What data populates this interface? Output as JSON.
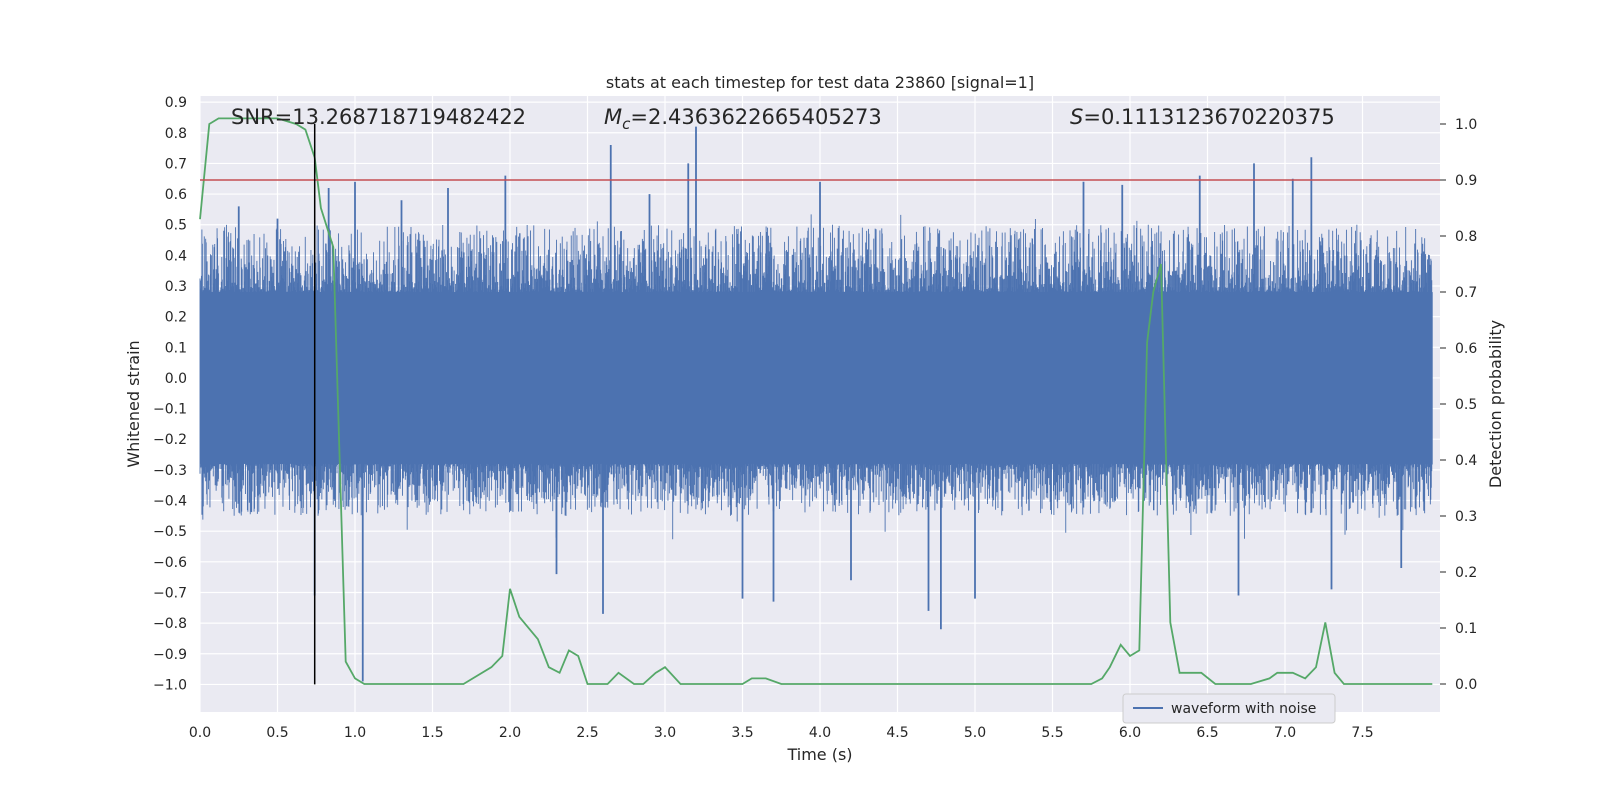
{
  "chart_data": {
    "type": "line",
    "title": "stats at each timestep for test data 23860 [signal=1]",
    "xlabel": "Time (s)",
    "ylabel": "Whitened strain",
    "y2label": "Detection probability",
    "xlim": [
      0.0,
      8.0
    ],
    "ylim": [
      -1.09,
      0.92
    ],
    "y2lim": [
      -0.05,
      1.05
    ],
    "xticks": [
      "0.0",
      "0.5",
      "1.0",
      "1.5",
      "2.0",
      "2.5",
      "3.0",
      "3.5",
      "4.0",
      "4.5",
      "5.0",
      "5.5",
      "6.0",
      "6.5",
      "7.0",
      "7.5"
    ],
    "yticks": [
      "0.9",
      "0.8",
      "0.7",
      "0.6",
      "0.5",
      "0.4",
      "0.3",
      "0.2",
      "0.1",
      "0.0",
      "−0.1",
      "−0.2",
      "−0.3",
      "−0.4",
      "−0.5",
      "−0.6",
      "−0.7",
      "−0.8",
      "−0.9",
      "−1.0"
    ],
    "y2ticks": [
      "0.0",
      "0.1",
      "0.2",
      "0.3",
      "0.4",
      "0.5",
      "0.6",
      "0.7",
      "0.8",
      "0.9",
      "1.0"
    ],
    "grid": true,
    "legend_position": "lower-right",
    "annotations": {
      "snr": "SNR=13.268718719482422",
      "mc_prefix": "M",
      "mc_sub": "c",
      "mc_value": "=2.4363622665405273",
      "s_prefix": "S",
      "s_value": "=0.1113123670220375"
    },
    "threshold": 0.9,
    "event_time": 0.74,
    "series": [
      {
        "name": "waveform with noise",
        "axis": "left",
        "color": "#4c72b0",
        "envelope": {
          "core_abs": 0.28,
          "typical_max": 0.5,
          "typical_min": -0.45
        },
        "spikes": [
          {
            "x": 0.25,
            "y": 0.56
          },
          {
            "x": 0.5,
            "y": 0.52
          },
          {
            "x": 0.74,
            "y": -0.71
          },
          {
            "x": 0.83,
            "y": 0.62
          },
          {
            "x": 1.0,
            "y": 0.64
          },
          {
            "x": 1.05,
            "y": -0.99
          },
          {
            "x": 1.3,
            "y": 0.58
          },
          {
            "x": 1.6,
            "y": 0.62
          },
          {
            "x": 1.97,
            "y": 0.66
          },
          {
            "x": 2.3,
            "y": -0.64
          },
          {
            "x": 2.6,
            "y": -0.77
          },
          {
            "x": 2.65,
            "y": 0.76
          },
          {
            "x": 2.9,
            "y": 0.6
          },
          {
            "x": 3.2,
            "y": 0.82
          },
          {
            "x": 3.15,
            "y": 0.7
          },
          {
            "x": 3.5,
            "y": -0.72
          },
          {
            "x": 3.7,
            "y": -0.73
          },
          {
            "x": 4.0,
            "y": 0.64
          },
          {
            "x": 4.2,
            "y": -0.66
          },
          {
            "x": 4.7,
            "y": -0.76
          },
          {
            "x": 4.78,
            "y": -0.82
          },
          {
            "x": 5.0,
            "y": -0.72
          },
          {
            "x": 5.7,
            "y": 0.64
          },
          {
            "x": 5.95,
            "y": 0.63
          },
          {
            "x": 6.45,
            "y": 0.66
          },
          {
            "x": 6.7,
            "y": -0.71
          },
          {
            "x": 6.8,
            "y": 0.7
          },
          {
            "x": 7.05,
            "y": 0.65
          },
          {
            "x": 7.17,
            "y": 0.72
          },
          {
            "x": 7.3,
            "y": -0.69
          },
          {
            "x": 7.75,
            "y": -0.62
          }
        ]
      },
      {
        "name": "detection probability",
        "axis": "right",
        "color": "#55a868",
        "x": [
          0.0,
          0.06,
          0.12,
          0.25,
          0.5,
          0.62,
          0.68,
          0.74,
          0.78,
          0.86,
          0.94,
          1.0,
          1.06,
          1.2,
          1.3,
          1.45,
          1.55,
          1.62,
          1.7,
          1.88,
          1.95,
          2.0,
          2.06,
          2.18,
          2.25,
          2.32,
          2.38,
          2.44,
          2.5,
          2.58,
          2.63,
          2.7,
          2.8,
          2.86,
          2.94,
          3.0,
          3.1,
          3.2,
          3.3,
          3.42,
          3.5,
          3.56,
          3.65,
          3.75,
          4.0,
          4.5,
          5.0,
          5.5,
          5.75,
          5.82,
          5.87,
          5.94,
          6.0,
          6.06,
          6.11,
          6.15,
          6.2,
          6.26,
          6.32,
          6.4,
          6.46,
          6.55,
          6.7,
          6.78,
          6.9,
          6.95,
          7.05,
          7.13,
          7.2,
          7.26,
          7.32,
          7.38,
          7.7,
          7.95
        ],
        "values": [
          0.83,
          1.0,
          1.01,
          1.01,
          1.01,
          1.0,
          0.99,
          0.94,
          0.85,
          0.78,
          0.04,
          0.01,
          0.0,
          0.0,
          0.0,
          0.0,
          0.0,
          0.0,
          0.0,
          0.03,
          0.05,
          0.17,
          0.12,
          0.08,
          0.03,
          0.02,
          0.06,
          0.05,
          0.0,
          0.0,
          0.0,
          0.02,
          0.0,
          0.0,
          0.02,
          0.03,
          0.0,
          0.0,
          0.0,
          0.0,
          0.0,
          0.01,
          0.01,
          0.0,
          0.0,
          0.0,
          0.0,
          0.0,
          0.0,
          0.01,
          0.03,
          0.07,
          0.05,
          0.06,
          0.61,
          0.7,
          0.75,
          0.11,
          0.02,
          0.02,
          0.02,
          0.0,
          0.0,
          0.0,
          0.01,
          0.02,
          0.02,
          0.01,
          0.03,
          0.11,
          0.02,
          0.0,
          0.0,
          0.0
        ]
      },
      {
        "name": "threshold",
        "axis": "right",
        "color": "#c44e52",
        "values": [
          0.9
        ]
      }
    ]
  }
}
